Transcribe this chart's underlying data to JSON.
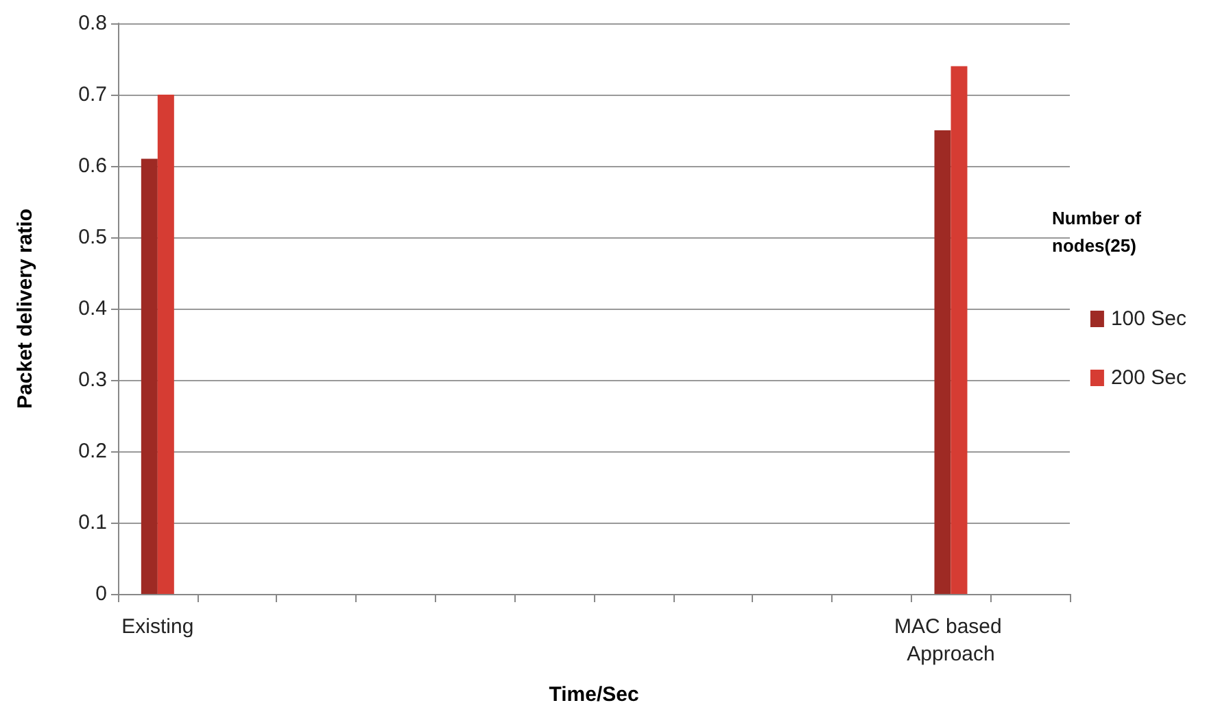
{
  "chart_data": {
    "type": "bar",
    "xlabel": "Time/Sec",
    "ylabel": "Packet delivery ratio",
    "legend_title": "Number of nodes(25)",
    "categories": [
      "Existing",
      null,
      null,
      null,
      null,
      null,
      null,
      null,
      null,
      null,
      "MAC based Approach",
      null
    ],
    "series": [
      {
        "name": "100 Sec",
        "color": "#9e2a24",
        "values": [
          0.61,
          null,
          null,
          null,
          null,
          null,
          null,
          null,
          null,
          null,
          0.65,
          null
        ]
      },
      {
        "name": "200 Sec",
        "color": "#d63c33",
        "values": [
          0.7,
          null,
          null,
          null,
          null,
          null,
          null,
          null,
          null,
          null,
          0.74,
          null
        ]
      }
    ],
    "ylim": [
      0,
      0.8
    ],
    "yticks": [
      0,
      0.1,
      0.2,
      0.3,
      0.4,
      0.5,
      0.6,
      0.7,
      0.8
    ],
    "grid": "y",
    "legend": "right"
  }
}
